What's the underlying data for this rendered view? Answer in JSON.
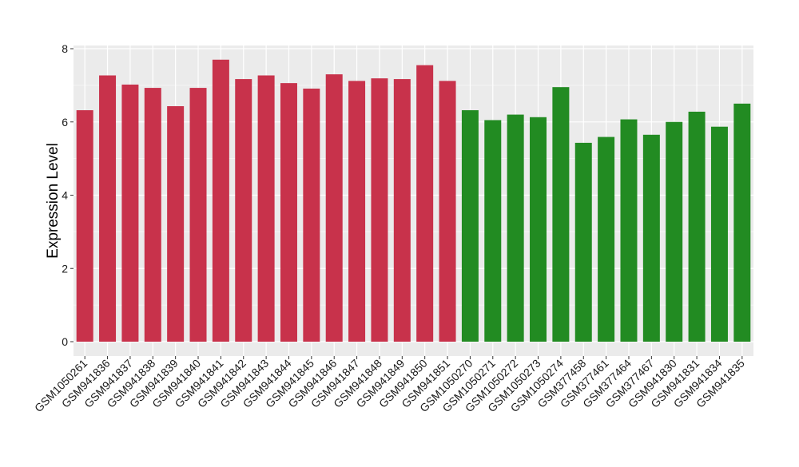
{
  "chart_data": {
    "type": "bar",
    "title": "",
    "xlabel": "",
    "ylabel": "Expression Level",
    "ylim": [
      0,
      8
    ],
    "yticks": [
      0,
      2,
      4,
      6,
      8
    ],
    "grid": true,
    "legend": "none",
    "panel_color": "#ebebeb",
    "gridline_color": "#ffffff",
    "categories": [
      "GSM1050261",
      "GSM941836",
      "GSM941837",
      "GSM941838",
      "GSM941839",
      "GSM941840",
      "GSM941841",
      "GSM941842",
      "GSM941843",
      "GSM941844",
      "GSM941845",
      "GSM941846",
      "GSM941847",
      "GSM941848",
      "GSM941849",
      "GSM941850",
      "GSM941851",
      "GSM1050270",
      "GSM1050271",
      "GSM1050272",
      "GSM1050273",
      "GSM1050274",
      "GSM377458",
      "GSM377461",
      "GSM377464",
      "GSM377467",
      "GSM941830",
      "GSM941831",
      "GSM941834",
      "GSM941835"
    ],
    "values": [
      6.32,
      7.27,
      7.02,
      6.93,
      6.43,
      6.93,
      7.7,
      7.17,
      7.27,
      7.06,
      6.91,
      7.3,
      7.12,
      7.19,
      7.17,
      7.55,
      7.12,
      6.32,
      6.05,
      6.2,
      6.13,
      6.95,
      5.43,
      5.59,
      6.07,
      5.65,
      6.0,
      6.28,
      5.87,
      6.5
    ],
    "bar_colors": [
      "#c8324b",
      "#c8324b",
      "#c8324b",
      "#c8324b",
      "#c8324b",
      "#c8324b",
      "#c8324b",
      "#c8324b",
      "#c8324b",
      "#c8324b",
      "#c8324b",
      "#c8324b",
      "#c8324b",
      "#c8324b",
      "#c8324b",
      "#c8324b",
      "#c8324b",
      "#228b22",
      "#228b22",
      "#228b22",
      "#228b22",
      "#228b22",
      "#228b22",
      "#228b22",
      "#228b22",
      "#228b22",
      "#228b22",
      "#228b22",
      "#228b22",
      "#228b22"
    ]
  }
}
